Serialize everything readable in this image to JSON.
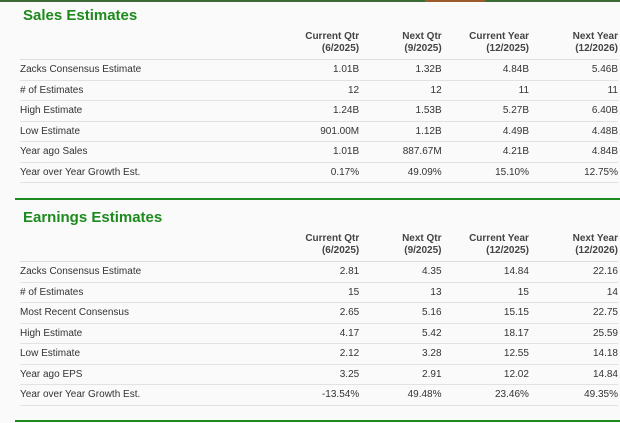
{
  "colors": {
    "accent": "#1d8a1d",
    "topbar": "#3d6b35",
    "topbar_highlight": "#9a5a2a"
  },
  "columns": [
    {
      "line1": "Current Qtr",
      "line2": "(6/2025)"
    },
    {
      "line1": "Next Qtr",
      "line2": "(9/2025)"
    },
    {
      "line1": "Current Year",
      "line2": "(12/2025)"
    },
    {
      "line1": "Next Year",
      "line2": "(12/2026)"
    }
  ],
  "sales": {
    "title": "Sales Estimates",
    "rows": [
      {
        "label": "Zacks Consensus Estimate",
        "values": [
          "1.01B",
          "1.32B",
          "4.84B",
          "5.46B"
        ]
      },
      {
        "label": "# of Estimates",
        "values": [
          "12",
          "12",
          "11",
          "11"
        ]
      },
      {
        "label": "High Estimate",
        "values": [
          "1.24B",
          "1.53B",
          "5.27B",
          "6.40B"
        ]
      },
      {
        "label": "Low Estimate",
        "values": [
          "901.00M",
          "1.12B",
          "4.49B",
          "4.48B"
        ]
      },
      {
        "label": "Year ago Sales",
        "values": [
          "1.01B",
          "887.67M",
          "4.21B",
          "4.84B"
        ]
      },
      {
        "label": "Year over Year Growth Est.",
        "values": [
          "0.17%",
          "49.09%",
          "15.10%",
          "12.75%"
        ]
      }
    ]
  },
  "earnings": {
    "title": "Earnings Estimates",
    "rows": [
      {
        "label": "Zacks Consensus Estimate",
        "values": [
          "2.81",
          "4.35",
          "14.84",
          "22.16"
        ]
      },
      {
        "label": "# of Estimates",
        "values": [
          "15",
          "13",
          "15",
          "14"
        ]
      },
      {
        "label": "Most Recent Consensus",
        "values": [
          "2.65",
          "5.16",
          "15.15",
          "22.75"
        ]
      },
      {
        "label": "High Estimate",
        "values": [
          "4.17",
          "5.42",
          "18.17",
          "25.59"
        ]
      },
      {
        "label": "Low Estimate",
        "values": [
          "2.12",
          "3.28",
          "12.55",
          "14.18"
        ]
      },
      {
        "label": "Year ago EPS",
        "values": [
          "3.25",
          "2.91",
          "12.02",
          "14.84"
        ]
      },
      {
        "label": "Year over Year Growth Est.",
        "values": [
          "-13.54%",
          "49.48%",
          "23.46%",
          "49.35%"
        ]
      }
    ]
  }
}
